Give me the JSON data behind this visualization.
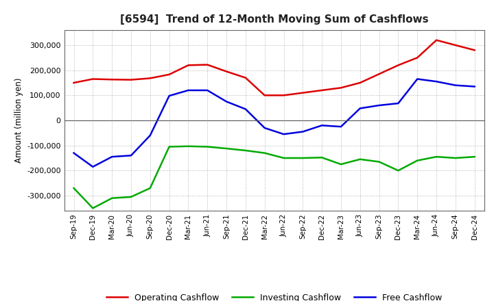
{
  "title": "[6594]  Trend of 12-Month Moving Sum of Cashflows",
  "ylabel": "Amount (million yen)",
  "background_color": "#ffffff",
  "grid_color": "#b0b0b0",
  "ylim": [
    -360000,
    360000
  ],
  "yticks": [
    -300000,
    -200000,
    -100000,
    0,
    100000,
    200000,
    300000
  ],
  "labels": [
    "Sep-19",
    "Dec-19",
    "Mar-20",
    "Jun-20",
    "Sep-20",
    "Dec-20",
    "Mar-21",
    "Jun-21",
    "Sep-21",
    "Dec-21",
    "Mar-22",
    "Jun-22",
    "Sep-22",
    "Dec-22",
    "Mar-23",
    "Jun-23",
    "Sep-23",
    "Dec-23",
    "Mar-24",
    "Jun-24",
    "Sep-24",
    "Dec-24"
  ],
  "operating": [
    150000,
    165000,
    163000,
    162000,
    168000,
    183000,
    220000,
    222000,
    195000,
    170000,
    100000,
    100000,
    110000,
    120000,
    130000,
    150000,
    185000,
    220000,
    250000,
    320000,
    300000,
    280000
  ],
  "investing": [
    -270000,
    -350000,
    -310000,
    -305000,
    -270000,
    -105000,
    -103000,
    -105000,
    -112000,
    -120000,
    -130000,
    -150000,
    -150000,
    -148000,
    -175000,
    -155000,
    -165000,
    -200000,
    -160000,
    -145000,
    -150000,
    -145000
  ],
  "free": [
    -130000,
    -185000,
    -145000,
    -140000,
    -60000,
    98000,
    120000,
    120000,
    75000,
    45000,
    -30000,
    -55000,
    -45000,
    -20000,
    -25000,
    48000,
    60000,
    68000,
    165000,
    155000,
    140000,
    135000
  ],
  "operating_color": "#dd0000",
  "investing_color": "#00aa00",
  "free_color": "#0000dd",
  "line_width": 1.8
}
